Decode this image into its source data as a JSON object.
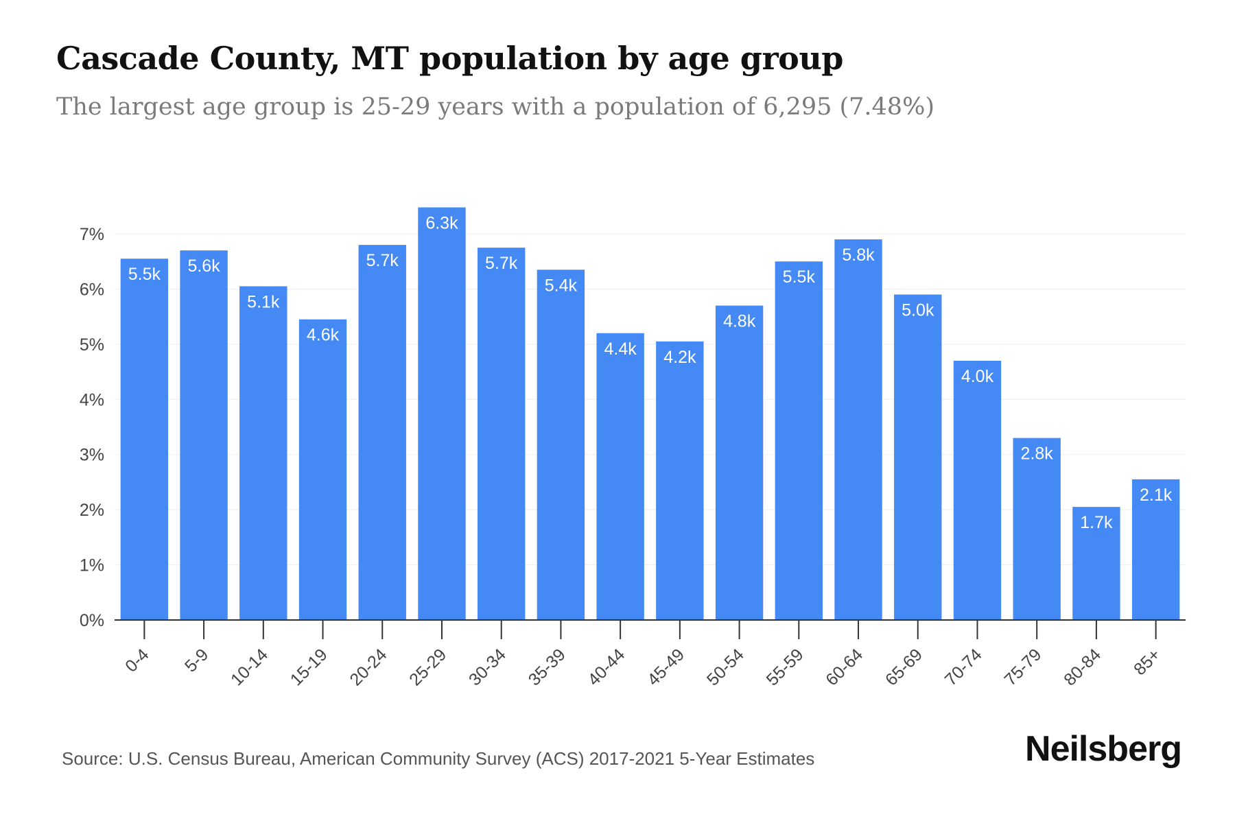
{
  "header": {
    "title": "Cascade County, MT population by age group",
    "subtitle": "The largest age group is 25-29 years with a population of 6,295 (7.48%)"
  },
  "footer": {
    "source": "Source: U.S. Census Bureau, American Community Survey (ACS) 2017-2021 5-Year Estimates",
    "brand": "Neilsberg"
  },
  "colors": {
    "bar": "#4589f4",
    "bar_label": "#ffffff",
    "grid": "#eeeeee",
    "axis": "#333333",
    "tick_text": "#444444"
  },
  "chart_data": {
    "type": "bar",
    "categories": [
      "0-4",
      "5-9",
      "10-14",
      "15-19",
      "20-24",
      "25-29",
      "30-34",
      "35-39",
      "40-44",
      "45-49",
      "50-54",
      "55-59",
      "60-64",
      "65-69",
      "70-74",
      "75-79",
      "80-84",
      "85+"
    ],
    "values": [
      6.55,
      6.7,
      6.05,
      5.45,
      6.8,
      7.48,
      6.75,
      6.35,
      5.2,
      5.05,
      5.7,
      6.5,
      6.9,
      5.9,
      4.7,
      3.3,
      2.05,
      2.55
    ],
    "data_labels": [
      "5.5k",
      "5.6k",
      "5.1k",
      "4.6k",
      "5.7k",
      "6.3k",
      "5.7k",
      "5.4k",
      "4.4k",
      "4.2k",
      "4.8k",
      "5.5k",
      "5.8k",
      "5.0k",
      "4.0k",
      "2.8k",
      "1.7k",
      "2.1k"
    ],
    "ylim": [
      0,
      7
    ],
    "yticks": [
      0,
      1,
      2,
      3,
      4,
      5,
      6,
      7
    ],
    "ytick_labels": [
      "0%",
      "1%",
      "2%",
      "3%",
      "4%",
      "5%",
      "6%",
      "7%"
    ],
    "xlabel": "",
    "ylabel": "",
    "grid": true,
    "legend": "none"
  }
}
